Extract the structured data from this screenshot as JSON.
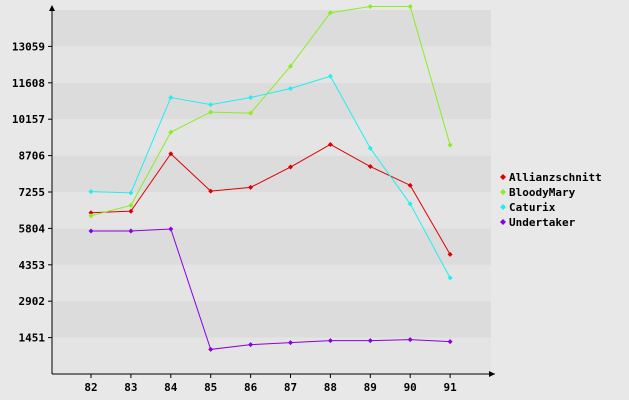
{
  "chart_data": {
    "type": "line",
    "title": "",
    "xlabel": "",
    "ylabel": "",
    "categories": [
      "82",
      "83",
      "84",
      "85",
      "86",
      "87",
      "88",
      "89",
      "90",
      "91"
    ],
    "y_ticks": [
      1451,
      2902,
      4353,
      5804,
      7255,
      8706,
      10157,
      11608,
      13059
    ],
    "ylim": [
      0,
      14510
    ],
    "grid": "horizontal bands",
    "legend": "right",
    "series": [
      {
        "name": "Allianzschnitt",
        "color": "#dd0000",
        "values": [
          6430,
          6490,
          8780,
          7290,
          7440,
          8250,
          9150,
          8270,
          7520,
          4770
        ]
      },
      {
        "name": "BloodyMary",
        "color": "#88ee22",
        "values": [
          6310,
          6720,
          9640,
          10440,
          10400,
          12270,
          14400,
          14650,
          14650,
          9130
        ]
      },
      {
        "name": "Caturix",
        "color": "#22eeee",
        "values": [
          7270,
          7220,
          11020,
          10740,
          11020,
          11380,
          11870,
          9000,
          6780,
          3830
        ]
      },
      {
        "name": "Undertaker",
        "color": "#8800dd",
        "values": [
          5700,
          5700,
          5780,
          980,
          1170,
          1250,
          1330,
          1330,
          1370,
          1290
        ]
      }
    ]
  }
}
